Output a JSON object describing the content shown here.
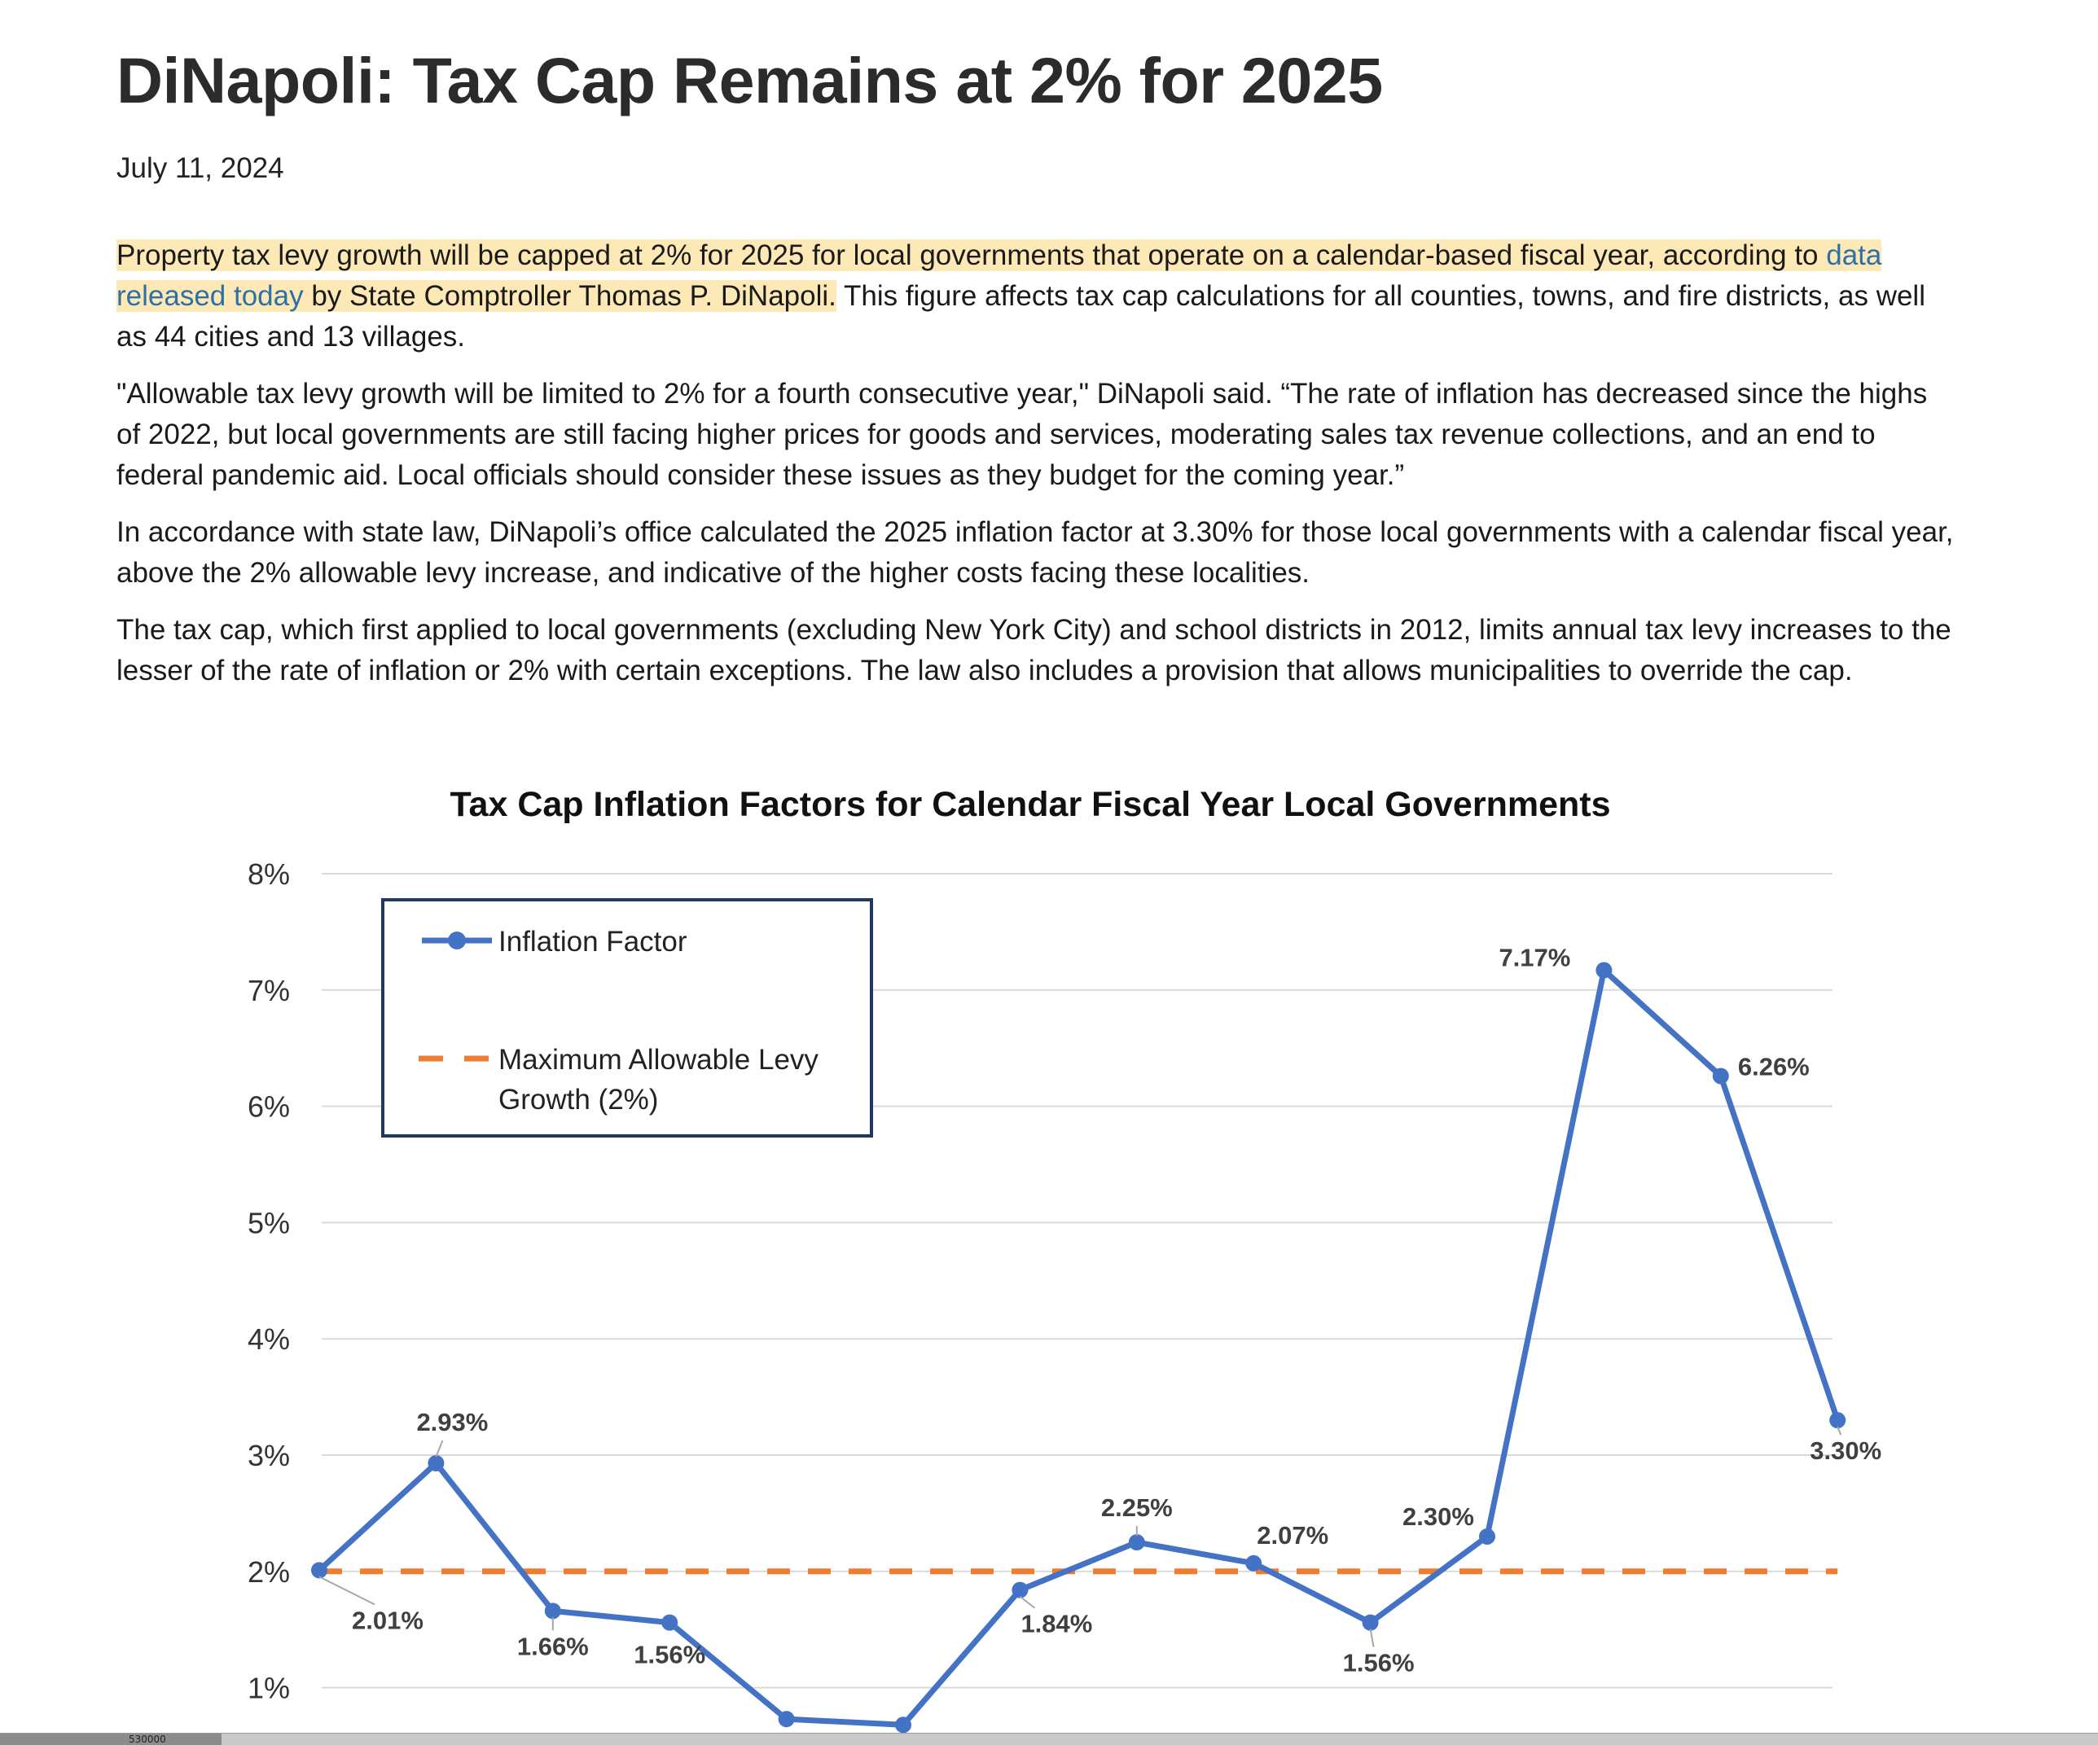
{
  "article": {
    "title": "DiNapoli: Tax Cap Remains at 2% for 2025",
    "date": "July 11, 2024",
    "p1": {
      "hl1": "Property tax levy growth will be capped at 2% for 2025 for local governments that operate on a calendar-based fiscal year, according to ",
      "link": "data released today",
      "hl2": " by State Comptroller Thomas P. DiNapoli.",
      "rest": " This figure affects tax cap calculations for all counties, towns, and fire districts, as well as 44 cities and 13 villages."
    },
    "p2": "\"Allowable tax levy growth will be limited to 2% for a fourth consecutive year,\" DiNapoli said. “The rate of inflation has decreased since the highs of 2022, but local governments are still facing higher prices for goods and services, moderating sales tax revenue collections, and an end to federal pandemic aid. Local officials should consider these issues as they budget for the coming year.”",
    "p3": "In accordance with state law, DiNapoli’s office calculated the 2025 inflation factor at 3.30% for those local governments with a calendar fiscal year, above the 2% allowable levy increase, and indicative of the higher costs facing these localities.",
    "p4": "The tax cap, which first applied to local governments (excluding New York City) and school districts in 2012, limits annual tax levy increases to the lesser of the rate of inflation or 2% with certain exceptions. The law also includes a provision that allows municipalities to override the cap."
  },
  "chart_data": {
    "type": "line",
    "title": "Tax Cap Inflation Factors for Calendar Fiscal Year Local Governments",
    "xlabel": "",
    "ylabel": "",
    "x": [
      1,
      2,
      3,
      4,
      5,
      6,
      7,
      8,
      9,
      10,
      11,
      12,
      13,
      14
    ],
    "ylim": [
      0.9,
      8
    ],
    "yticks": [
      1,
      2,
      3,
      4,
      5,
      6,
      7,
      8
    ],
    "ytick_labels": [
      "1%",
      "2%",
      "3%",
      "4%",
      "5%",
      "6%",
      "7%",
      "8%"
    ],
    "grid": true,
    "legend_position": "top-left",
    "series": [
      {
        "name": "Inflation Factor",
        "color": "#4472c4",
        "style": "solid-with-markers",
        "values": [
          2.01,
          2.93,
          1.66,
          1.56,
          0.73,
          0.68,
          1.84,
          2.25,
          2.07,
          1.56,
          2.3,
          7.17,
          6.26,
          3.3
        ],
        "labels": [
          "2.01%",
          "2.93%",
          "1.66%",
          "1.56%",
          "",
          "",
          "1.84%",
          "2.25%",
          "2.07%",
          "1.56%",
          "2.30%",
          "7.17%",
          "6.26%",
          "3.30%"
        ]
      },
      {
        "name": "Maximum Allowable Levy Growth (2%)",
        "color": "#ed7d31",
        "style": "dashed",
        "values": [
          2,
          2,
          2,
          2,
          2,
          2,
          2,
          2,
          2,
          2,
          2,
          2,
          2,
          2
        ]
      }
    ],
    "legend": {
      "entry1": "Inflation Factor",
      "entry2_line1": "Maximum Allowable Levy",
      "entry2_line2": "Growth (2%)"
    }
  },
  "scrollbar": {
    "label": "530000"
  }
}
